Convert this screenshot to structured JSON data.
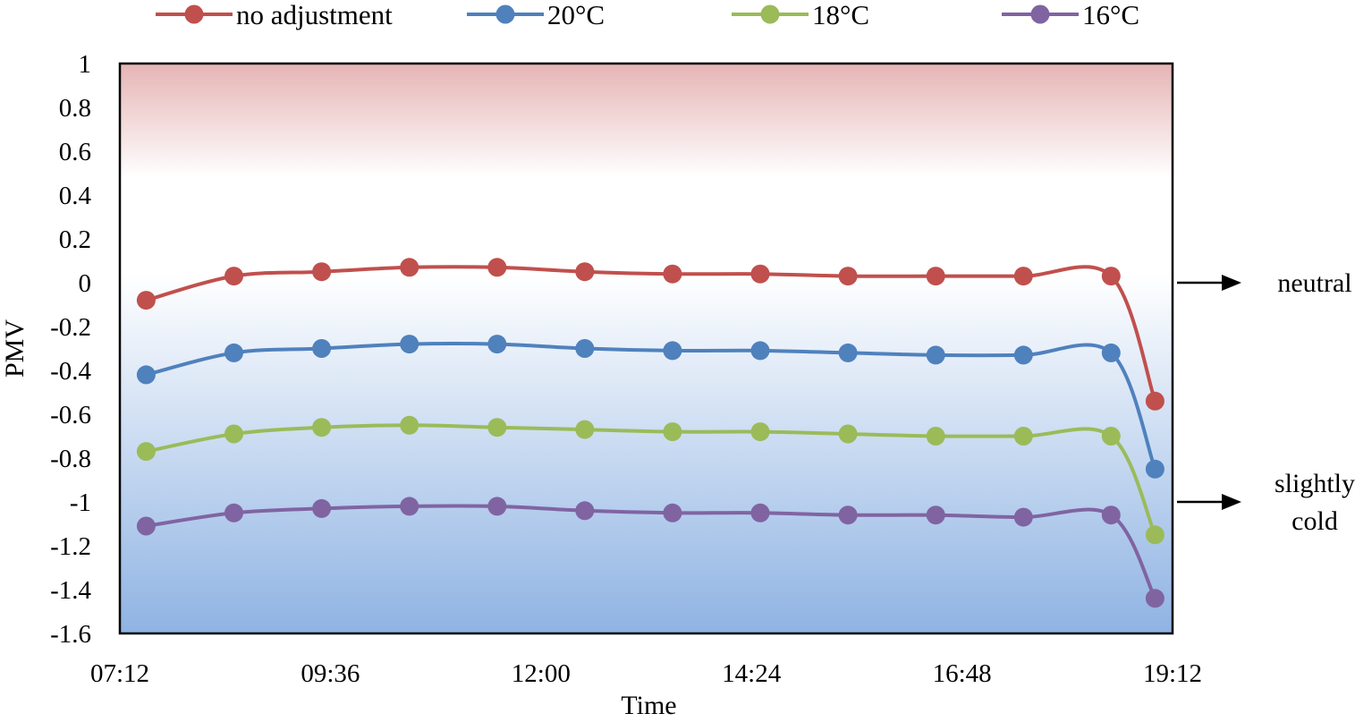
{
  "chart_data": {
    "type": "line",
    "title": "",
    "xlabel": "Time",
    "ylabel": "PMV",
    "x_ticks": [
      "07:12",
      "09:36",
      "12:00",
      "14:24",
      "16:48",
      "19:12"
    ],
    "y_ticks": [
      "1",
      "0.8",
      "0.6",
      "0.4",
      "0.2",
      "0",
      "-0.2",
      "-0.4",
      "-0.6",
      "-0.8",
      "-1",
      "-1.2",
      "-1.4",
      "-1.6"
    ],
    "xlim": [
      "07:12",
      "19:12"
    ],
    "ylim": [
      -1.6,
      1
    ],
    "grid": false,
    "legend_position": "top",
    "x": [
      "07:30",
      "08:30",
      "09:30",
      "10:30",
      "11:30",
      "12:30",
      "13:30",
      "14:30",
      "15:30",
      "16:30",
      "17:30",
      "18:30",
      "19:00"
    ],
    "series": [
      {
        "name": "no adjustment",
        "color": "#c0504d",
        "values": [
          -0.08,
          0.03,
          0.05,
          0.07,
          0.07,
          0.05,
          0.04,
          0.04,
          0.03,
          0.03,
          0.03,
          0.03,
          -0.54
        ]
      },
      {
        "name": "20°C",
        "color": "#4f81bd",
        "values": [
          -0.42,
          -0.32,
          -0.3,
          -0.28,
          -0.28,
          -0.3,
          -0.31,
          -0.31,
          -0.32,
          -0.33,
          -0.33,
          -0.32,
          -0.85
        ]
      },
      {
        "name": "18°C",
        "color": "#9bbb59",
        "values": [
          -0.77,
          -0.69,
          -0.66,
          -0.65,
          -0.66,
          -0.67,
          -0.68,
          -0.68,
          -0.69,
          -0.7,
          -0.7,
          -0.7,
          -1.15
        ]
      },
      {
        "name": "16°C",
        "color": "#8064a2",
        "values": [
          -1.11,
          -1.05,
          -1.03,
          -1.02,
          -1.02,
          -1.04,
          -1.05,
          -1.05,
          -1.06,
          -1.06,
          -1.07,
          -1.06,
          -1.44
        ]
      }
    ],
    "annotations": [
      {
        "text": "neutral",
        "y": 0
      },
      {
        "text": "slightly\ncold",
        "y": -1
      }
    ],
    "background": {
      "warm_color": "#e6b4b4",
      "cool_color": "#8fb3e3"
    }
  }
}
